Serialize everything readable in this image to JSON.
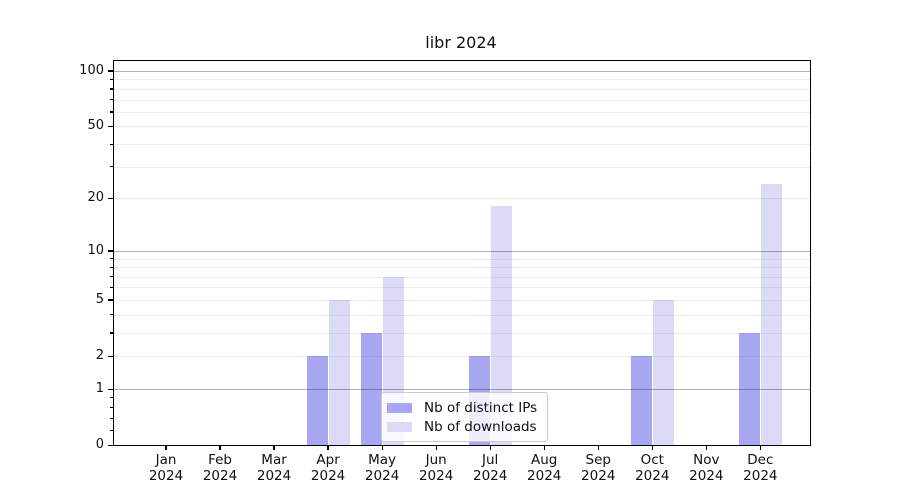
{
  "figure": {
    "title": "libr 2024"
  },
  "chart_data": {
    "type": "bar",
    "title": "libr 2024",
    "xlabel": "",
    "ylabel": "",
    "categories": [
      "Jan 2024",
      "Feb 2024",
      "Mar 2024",
      "Apr 2024",
      "May 2024",
      "Jun 2024",
      "Jul 2024",
      "Aug 2024",
      "Sep 2024",
      "Oct 2024",
      "Nov 2024",
      "Dec 2024"
    ],
    "series": [
      {
        "name": "Nb of distinct IPs",
        "color": "#a8a8f2",
        "values": [
          0,
          0,
          0,
          2,
          3,
          0,
          2,
          0,
          0,
          2,
          0,
          3
        ]
      },
      {
        "name": "Nb of downloads",
        "color": "#dbdbf8",
        "values": [
          0,
          0,
          0,
          5,
          7,
          0,
          18,
          0,
          0,
          5,
          0,
          24
        ]
      }
    ],
    "y_axis": {
      "scale": "log1p",
      "labeled_ticks": [
        0,
        1,
        2,
        5,
        10,
        20,
        50,
        100
      ],
      "major_gridlines": [
        1,
        10,
        100
      ],
      "minor_gridlines": [
        2,
        3,
        4,
        5,
        6,
        7,
        8,
        9,
        20,
        30,
        40,
        50,
        60,
        70,
        80,
        90
      ],
      "minor_ticks_linear": [
        0.2,
        0.4,
        0.6,
        0.8
      ],
      "ylim": [
        0,
        113
      ]
    },
    "legend": {
      "position": "lower center",
      "entries": [
        "Nb of distinct IPs",
        "Nb of downloads"
      ]
    },
    "colors": {
      "background": "#ffffff",
      "axis": "#000000",
      "major_grid": "#b3b3b3",
      "minor_grid": "#ebebeb",
      "series_distinct_ips": "#a8a8f2",
      "series_downloads": "#dbdbf8"
    },
    "grid": "horizontal major+minor, drawn over bars"
  }
}
